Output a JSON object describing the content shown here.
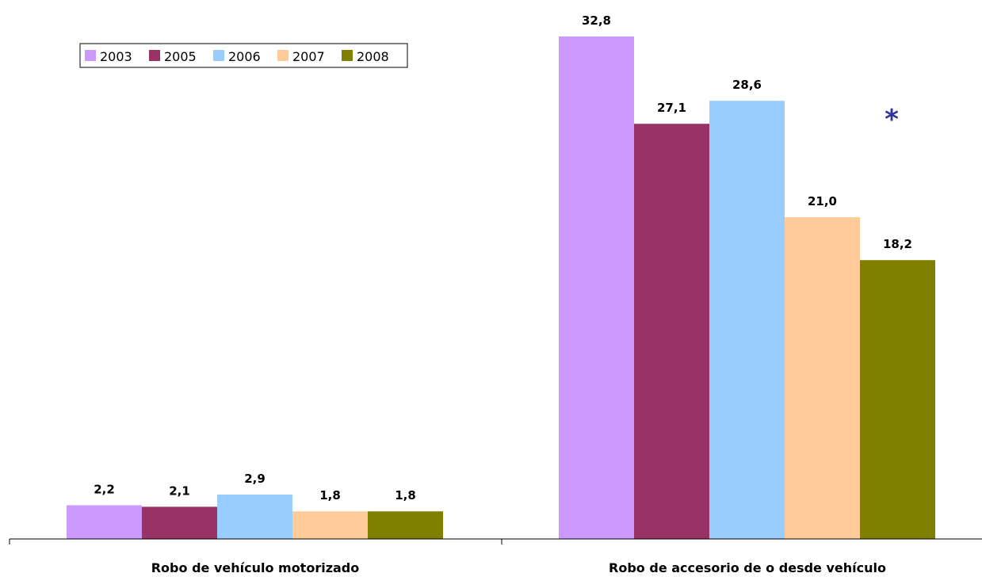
{
  "chart_data": {
    "type": "bar",
    "categories": [
      "Robo de vehículo motorizado",
      "Robo de accesorio de o desde vehículo"
    ],
    "series": [
      {
        "name": "2003",
        "color": "#cc99ff",
        "values": [
          2.2,
          32.8
        ],
        "labels": [
          "2,2",
          "32,8"
        ]
      },
      {
        "name": "2005",
        "color": "#993366",
        "values": [
          2.1,
          27.1
        ],
        "labels": [
          "2,1",
          "27,1"
        ]
      },
      {
        "name": "2006",
        "color": "#99ccff",
        "values": [
          2.9,
          28.6
        ],
        "labels": [
          "2,9",
          "28,6"
        ]
      },
      {
        "name": "2007",
        "color": "#ffcc99",
        "values": [
          1.8,
          21.0
        ],
        "labels": [
          "1,8",
          "21,0"
        ]
      },
      {
        "name": "2008",
        "color": "#808000",
        "values": [
          1.8,
          18.2
        ],
        "labels": [
          "1,8",
          "18,2"
        ]
      }
    ],
    "ylim": [
      0,
      35
    ],
    "grid": false,
    "legend": "top-left",
    "annotation": {
      "text": "*",
      "color": "#333399"
    }
  }
}
